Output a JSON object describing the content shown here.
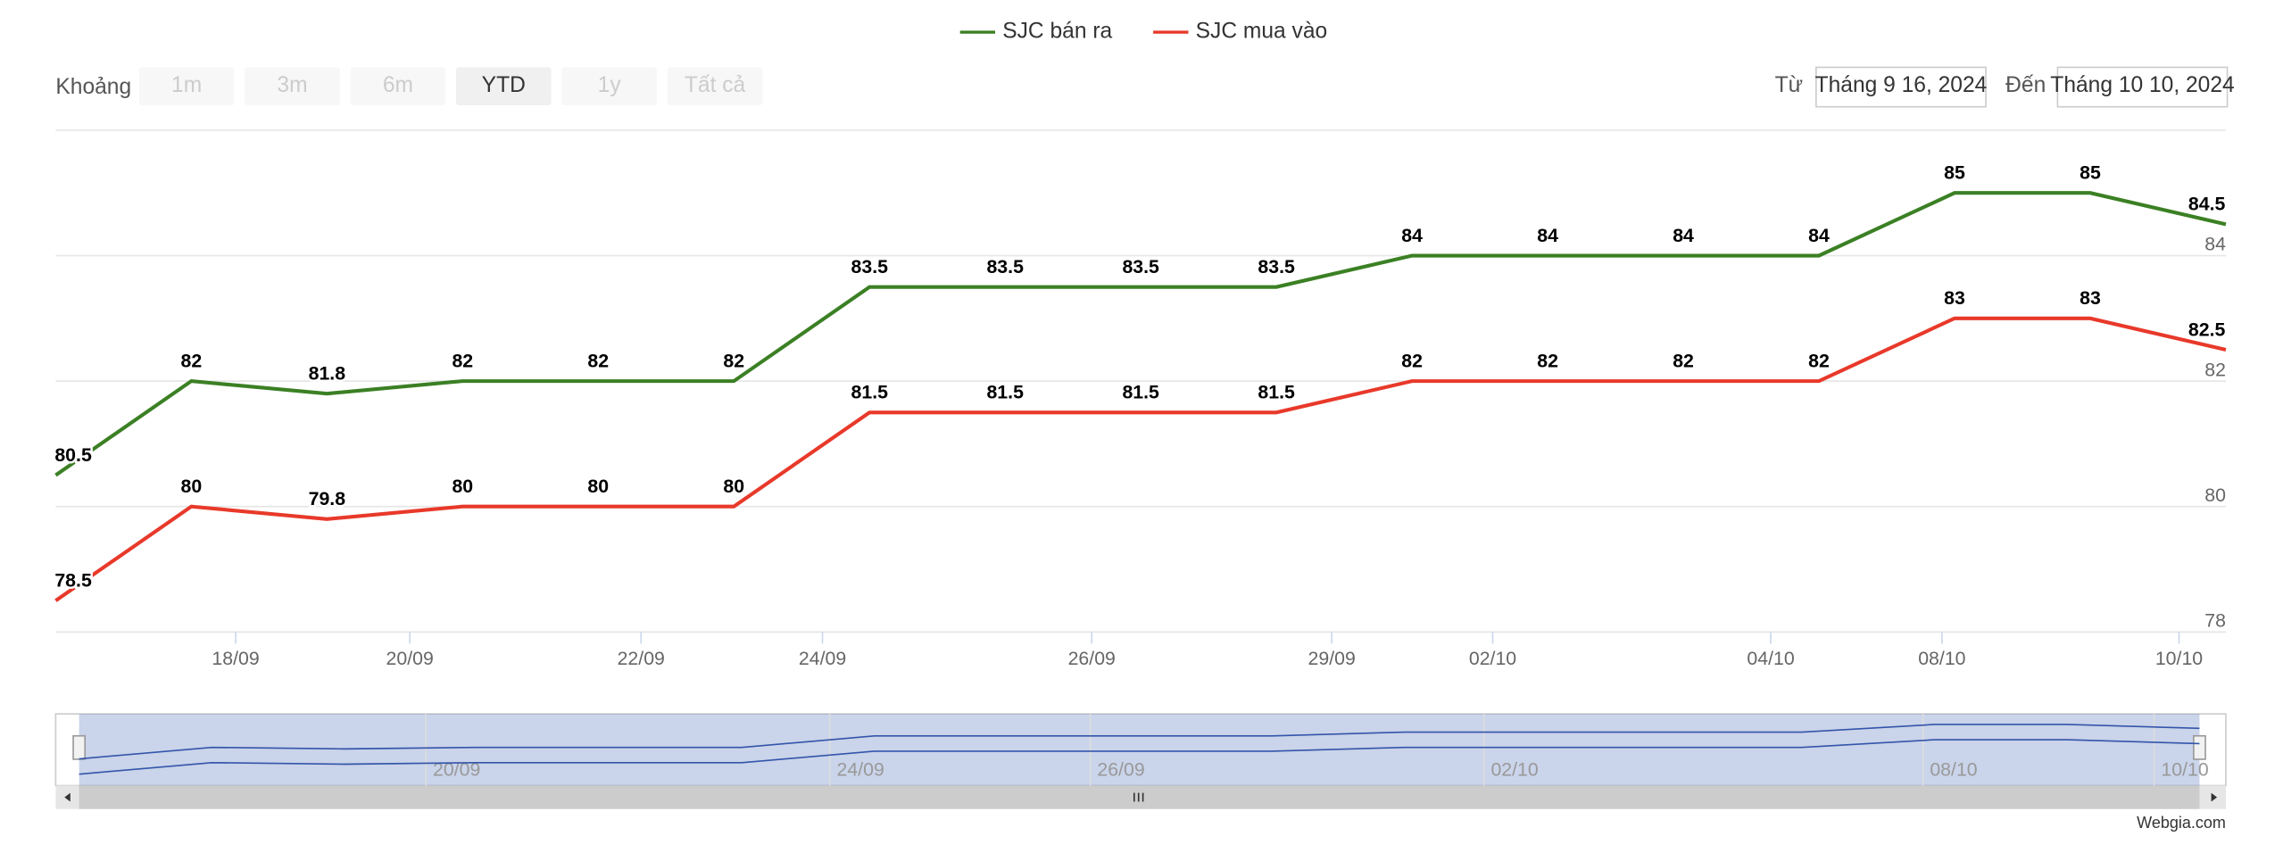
{
  "range_selector": {
    "label": "Khoảng",
    "buttons": [
      "1m",
      "3m",
      "6m",
      "YTD",
      "1y",
      "Tất cả"
    ],
    "selected": "YTD"
  },
  "date_range": {
    "from_label": "Từ",
    "from": "Tháng 9 16, 2024",
    "to_label": "Đến",
    "to": "Tháng 10 10, 2024"
  },
  "credit": "Webgia.com",
  "chart_data": {
    "type": "line",
    "series": [
      {
        "name": "SJC bán ra",
        "color": "#3b8024",
        "values": [
          80.5,
          82,
          81.8,
          82,
          82,
          82,
          83.5,
          83.5,
          83.5,
          83.5,
          84,
          84,
          84,
          84,
          85,
          85,
          84.5
        ]
      },
      {
        "name": "SJC mua vào",
        "color": "#e8392a",
        "values": [
          78.5,
          80,
          79.8,
          80,
          80,
          80,
          81.5,
          81.5,
          81.5,
          81.5,
          82,
          82,
          82,
          82,
          83,
          83,
          82.5
        ]
      }
    ],
    "ylim": [
      78,
      86
    ],
    "yticks": [
      78,
      80,
      82,
      84
    ],
    "grid": true,
    "x_labels": [
      "18/09",
      "20/09",
      "22/09",
      "24/09",
      "26/09",
      "29/09",
      "02/10",
      "04/10",
      "08/10",
      "10/10"
    ],
    "navigator_labels": [
      "20/09",
      "24/09",
      "26/09",
      "02/10",
      "08/10",
      "10/10"
    ]
  }
}
